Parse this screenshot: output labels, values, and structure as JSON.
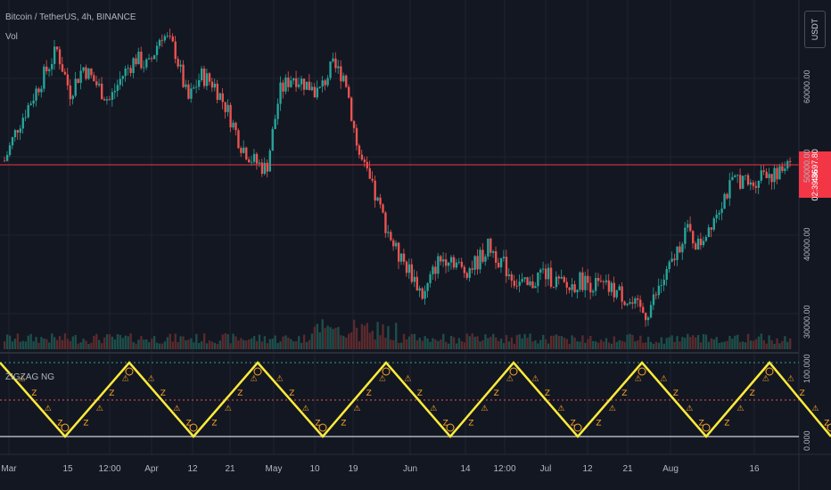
{
  "header": {
    "symbol_line": "Bitcoin / TetherUS, 4h, BINANCE",
    "indicator_vol": "Vol",
    "indicator_main": "ZIGZAG NG"
  },
  "currency_button": "USDT",
  "last_price": {
    "value": "48697.80",
    "countdown": "02:39:36"
  },
  "price_axis": [
    "60000.00",
    "50000.00",
    "40000.00",
    "30000.00"
  ],
  "osc_axis": [
    "100.000",
    "0.000"
  ],
  "time_axis": [
    "Mar",
    "15",
    "12:00",
    "Apr",
    "12",
    "21",
    "May",
    "10",
    "19",
    "Jun",
    "14",
    "12:00",
    "Jul",
    "12",
    "21",
    "Aug",
    "16"
  ],
  "colors": {
    "background": "#131722",
    "up": "#26a69a",
    "down": "#ef5350",
    "zigzag": "#ffeb3b",
    "price_line": "#f23645"
  },
  "chart_data": {
    "type": "line",
    "price_series_closes": [
      48000,
      52000,
      55000,
      58000,
      61000,
      56000,
      59000,
      57000,
      55000,
      58000,
      60000,
      59000,
      63000,
      61000,
      55000,
      58000,
      57000,
      54000,
      50000,
      48000,
      47000,
      56000,
      58000,
      57000,
      56000,
      59000,
      58000,
      49000,
      45000,
      41000,
      37000,
      35000,
      32000,
      36000,
      37000,
      35000,
      36000,
      38000,
      36000,
      34000,
      33000,
      35000,
      34000,
      33000,
      34000,
      33500,
      33000,
      32500,
      31000,
      30000,
      33000,
      36000,
      40000,
      38000,
      41000,
      44000,
      46000,
      45000,
      47000,
      46000,
      48697
    ],
    "price_ylim": [
      28000,
      66000
    ],
    "oscillator_series": [
      100,
      0,
      100,
      0,
      100,
      0,
      100,
      0,
      100,
      0,
      100,
      0,
      100,
      0
    ],
    "oscillator_ylim": [
      0,
      100
    ],
    "levels": [
      0,
      50,
      100
    ]
  }
}
